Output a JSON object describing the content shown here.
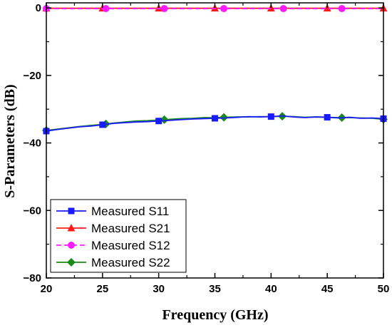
{
  "chart_data": {
    "type": "line",
    "title": "",
    "xlabel": "Frequency (GHz)",
    "ylabel": "S-Parameters (dB)",
    "xlim": [
      20,
      50
    ],
    "ylim": [
      -80,
      1.5
    ],
    "x_ticks": [
      20,
      25,
      30,
      35,
      40,
      45,
      50
    ],
    "y_ticks": [
      0,
      -20,
      -40,
      -60,
      -80
    ],
    "x_tick_labels": [
      "20",
      "25",
      "30",
      "35",
      "40",
      "45",
      "50"
    ],
    "y_tick_labels": [
      "0",
      "−20",
      "−40",
      "−60",
      "−80"
    ],
    "grid": false,
    "legend_position": "bottom-left",
    "series": [
      {
        "name": "Measured S11",
        "color": "#1a1aff",
        "marker": "square",
        "dash": "solid",
        "x": [
          20,
          21,
          22,
          23,
          24,
          25,
          26,
          27,
          28,
          29,
          30,
          31,
          32,
          33,
          34,
          35,
          36,
          37,
          38,
          39,
          40,
          41,
          42,
          43,
          44,
          45,
          46,
          47,
          48,
          49,
          50
        ],
        "y": [
          -36.5,
          -36.0,
          -35.6,
          -35.2,
          -35.0,
          -34.6,
          -34.2,
          -34.0,
          -33.8,
          -33.7,
          -33.5,
          -33.3,
          -33.1,
          -32.9,
          -32.8,
          -32.7,
          -32.6,
          -32.4,
          -32.2,
          -32.3,
          -32.2,
          -32.0,
          -32.3,
          -32.5,
          -32.3,
          -32.4,
          -32.6,
          -32.4,
          -32.7,
          -32.6,
          -32.8
        ],
        "markers_x": [
          20,
          25,
          30,
          35,
          40,
          45,
          50
        ]
      },
      {
        "name": "Measured S21",
        "color": "#ff1a1a",
        "marker": "triangle",
        "dash": "solid",
        "x": [
          20,
          25,
          30,
          35,
          40,
          45,
          50
        ],
        "y": [
          -0.1,
          -0.1,
          -0.1,
          -0.1,
          -0.1,
          -0.1,
          -0.1
        ],
        "markers_x": [
          20,
          25,
          30,
          35,
          40,
          45,
          50
        ]
      },
      {
        "name": "Measured S12",
        "color": "#ff1aff",
        "marker": "circle",
        "dash": "dashed",
        "x": [
          20,
          25.3,
          30.5,
          35.8,
          41.1,
          46.3,
          50
        ],
        "y": [
          -0.2,
          -0.2,
          -0.2,
          -0.2,
          -0.2,
          -0.2,
          -0.2
        ],
        "markers_x": [
          20,
          25.3,
          30.5,
          35.8,
          41.1,
          46.3
        ]
      },
      {
        "name": "Measured S22",
        "color": "#1a8a1a",
        "marker": "diamond",
        "dash": "solid",
        "x": [
          20,
          21,
          22,
          23,
          24,
          25,
          26,
          27,
          28,
          29,
          30,
          31,
          32,
          33,
          34,
          35,
          36,
          37,
          38,
          39,
          40,
          41,
          42,
          43,
          44,
          45,
          46,
          47,
          48,
          49,
          50
        ],
        "y": [
          -36.3,
          -35.9,
          -35.5,
          -35.1,
          -34.8,
          -34.5,
          -34.1,
          -33.8,
          -33.5,
          -33.4,
          -33.2,
          -33.0,
          -32.8,
          -32.7,
          -32.5,
          -32.5,
          -32.4,
          -32.3,
          -32.3,
          -32.2,
          -32.2,
          -32.1,
          -32.2,
          -32.4,
          -32.3,
          -32.4,
          -32.5,
          -32.5,
          -32.6,
          -32.7,
          -33.0
        ],
        "markers_x": [
          20,
          25.3,
          30.5,
          35.8,
          41.0,
          46.3,
          50
        ]
      }
    ]
  }
}
